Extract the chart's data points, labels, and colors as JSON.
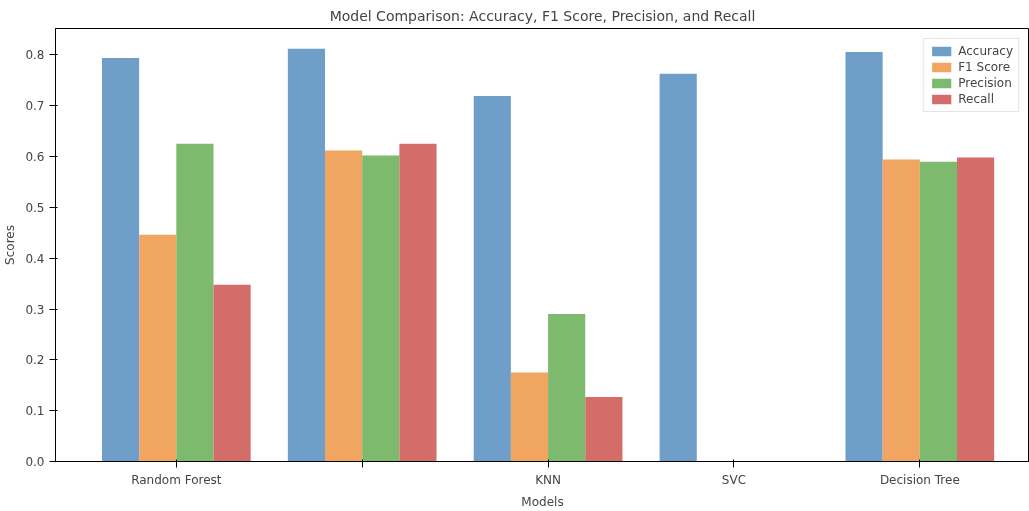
{
  "chart_data": {
    "type": "bar",
    "title": "Model Comparison: Accuracy, F1 Score, Precision, and Recall",
    "xlabel": "Models",
    "ylabel": "Scores",
    "categories": [
      "Random Forest",
      null,
      "KNN",
      "SVC",
      "Decision Tree"
    ],
    "series": [
      {
        "name": "Accuracy",
        "color": "#6f9ec8",
        "values": [
          0.794,
          0.812,
          0.719,
          0.763,
          0.806
        ]
      },
      {
        "name": "F1 Score",
        "color": "#f0a660",
        "values": [
          0.446,
          0.612,
          0.175,
          0,
          0.594
        ]
      },
      {
        "name": "Precision",
        "color": "#7dba6e",
        "values": [
          0.625,
          0.602,
          0.29,
          0,
          0.59
        ]
      },
      {
        "name": "Recall",
        "color": "#d46d6a",
        "values": [
          0.348,
          0.625,
          0.127,
          0,
          0.598
        ]
      }
    ],
    "ylim": [
      0,
      0.852
    ],
    "yticks": [
      {
        "value": 0,
        "label": "0.0"
      },
      {
        "value": 0.1,
        "label": "0.1"
      },
      {
        "value": 0.2,
        "label": "0.2"
      },
      {
        "value": 0.3,
        "label": "0.3"
      },
      {
        "value": 0.4,
        "label": "0.4"
      },
      {
        "value": 0.5,
        "label": "0.5"
      },
      {
        "value": 0.6,
        "label": "0.6"
      },
      {
        "value": 0.7,
        "label": "0.7"
      },
      {
        "value": 0.8,
        "label": "0.8"
      }
    ],
    "legend": "top right",
    "grid": false
  }
}
